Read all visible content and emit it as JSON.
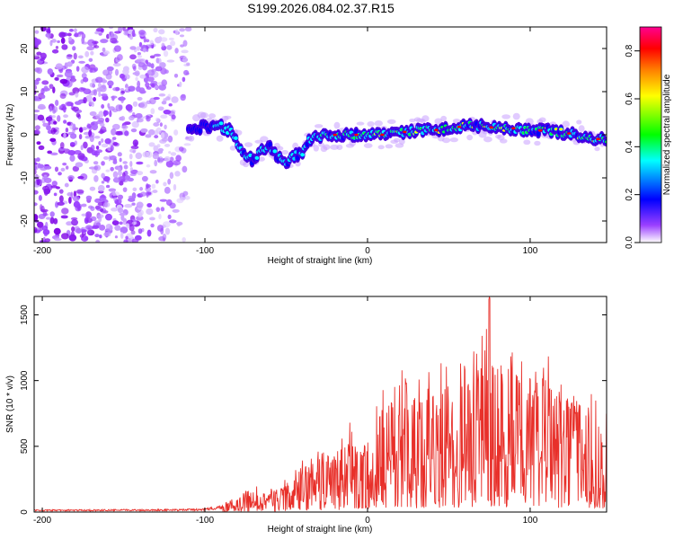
{
  "title": "S199.2026.084.02.37.R15",
  "chart_data": [
    {
      "type": "heatmap",
      "xlabel": "Height of straight line (km)",
      "ylabel": "Frequency (Hz)",
      "xlim": [
        -205,
        147
      ],
      "ylim": [
        -25,
        25
      ],
      "xticks": [
        -200,
        -100,
        0,
        100
      ],
      "xtick_labels": [
        "-200",
        "-100",
        "0",
        "100"
      ],
      "yticks": [
        -20,
        -10,
        0,
        10,
        20
      ],
      "ytick_labels": [
        "-20",
        "-10",
        "0",
        "10",
        "20"
      ],
      "colorbar": {
        "label": "Normalized spectral amplitude",
        "range": [
          0.0,
          0.9
        ],
        "ticks": [
          0.0,
          0.2,
          0.4,
          0.6,
          0.8
        ],
        "tick_labels": [
          "0.0",
          "0.2",
          "0.4",
          "0.6",
          "0.8"
        ],
        "colors": [
          "#ffffff",
          "#8000ff",
          "#0000ff",
          "#00ffff",
          "#00ff00",
          "#ffff00",
          "#ff8000",
          "#ff0000",
          "#ff0080"
        ]
      },
      "noise_region_km": [
        -205,
        -110
      ],
      "ridge": {
        "name": "Frequency ridge",
        "x": [
          -110,
          -100,
          -90,
          -85,
          -80,
          -75,
          -70,
          -68,
          -65,
          -60,
          -55,
          -50,
          -45,
          -40,
          -35,
          -30,
          -20,
          -10,
          0,
          10,
          20,
          30,
          40,
          50,
          60,
          70,
          80,
          90,
          100,
          110,
          120,
          130,
          140,
          147
        ],
        "y": [
          1,
          2,
          2,
          1,
          -2,
          -4.5,
          -6,
          -5,
          -3,
          -3,
          -5,
          -6.5,
          -5,
          -4,
          -1,
          -0.5,
          0,
          0,
          0,
          0,
          0.5,
          1,
          1,
          1.5,
          2,
          2,
          1.5,
          1.5,
          1,
          1,
          0.5,
          0,
          -1,
          -1
        ],
        "peak_amplitude": 0.9
      }
    },
    {
      "type": "line",
      "xlabel": "Height of straight line (km)",
      "ylabel": "SNR (10 * v/v)",
      "xlim": [
        -205,
        147
      ],
      "ylim": [
        0,
        1640
      ],
      "xticks": [
        -200,
        -100,
        0,
        100
      ],
      "xtick_labels": [
        "-200",
        "-100",
        "0",
        "100"
      ],
      "yticks": [
        0,
        500,
        1000,
        1500
      ],
      "ytick_labels": [
        "0",
        "500",
        "1000",
        "1500"
      ],
      "color": "#e8302a",
      "series": [
        {
          "name": "SNR",
          "envelope_x": [
            -205,
            -120,
            -100,
            -90,
            -80,
            -70,
            -60,
            -50,
            -40,
            -30,
            -20,
            -10,
            -5,
            5,
            10,
            20,
            30,
            40,
            50,
            60,
            70,
            75,
            80,
            90,
            100,
            110,
            120,
            130,
            140,
            147
          ],
          "envelope_y": [
            20,
            25,
            30,
            60,
            120,
            200,
            180,
            250,
            400,
            480,
            480,
            700,
            500,
            800,
            950,
            1100,
            1000,
            1200,
            1100,
            1200,
            1350,
            1640,
            1350,
            1250,
            1150,
            1250,
            1050,
            1050,
            900,
            1000
          ]
        }
      ]
    }
  ]
}
